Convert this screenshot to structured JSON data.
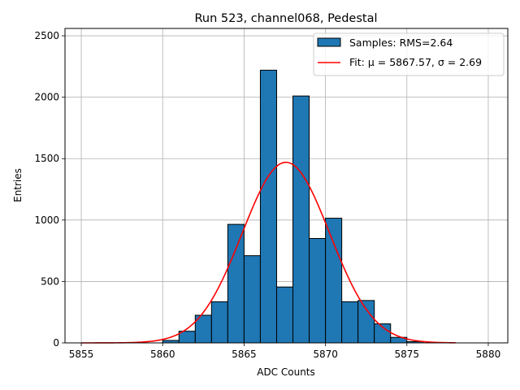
{
  "chart_data": {
    "type": "bar",
    "title": "Run 523, channel068, Pedestal",
    "xlabel": "ADC Counts",
    "ylabel": "Entries",
    "xlim": [
      5854.0,
      5881.2
    ],
    "ylim": [
      0,
      2560
    ],
    "xticks": [
      5855,
      5860,
      5865,
      5870,
      5875,
      5880
    ],
    "yticks": [
      0,
      500,
      1000,
      1500,
      2000,
      2500
    ],
    "grid": true,
    "legend_position": "top-right",
    "bin_width": 1,
    "series": [
      {
        "name": "Samples: RMS=2.64",
        "kind": "histogram",
        "color": "#1f77b4",
        "edgecolor": "#000000",
        "bins": [
          {
            "x0": 5860.0,
            "x1": 5861.0,
            "count": 20
          },
          {
            "x0": 5861.0,
            "x1": 5862.0,
            "count": 95
          },
          {
            "x0": 5862.0,
            "x1": 5863.0,
            "count": 225
          },
          {
            "x0": 5863.0,
            "x1": 5864.0,
            "count": 335
          },
          {
            "x0": 5864.0,
            "x1": 5865.0,
            "count": 965
          },
          {
            "x0": 5865.0,
            "x1": 5866.0,
            "count": 710
          },
          {
            "x0": 5866.0,
            "x1": 5867.0,
            "count": 2220
          },
          {
            "x0": 5867.0,
            "x1": 5868.0,
            "count": 455
          },
          {
            "x0": 5868.0,
            "x1": 5869.0,
            "count": 2010
          },
          {
            "x0": 5869.0,
            "x1": 5870.0,
            "count": 850
          },
          {
            "x0": 5870.0,
            "x1": 5871.0,
            "count": 1015
          },
          {
            "x0": 5871.0,
            "x1": 5872.0,
            "count": 335
          },
          {
            "x0": 5872.0,
            "x1": 5873.0,
            "count": 345
          },
          {
            "x0": 5873.0,
            "x1": 5874.0,
            "count": 155
          },
          {
            "x0": 5874.0,
            "x1": 5875.0,
            "count": 45
          },
          {
            "x0": 5875.0,
            "x1": 5876.0,
            "count": 10
          }
        ]
      },
      {
        "name": "Fit: μ = 5867.57, σ = 2.69",
        "kind": "gaussian",
        "color": "#ff0000",
        "mu": 5867.57,
        "sigma": 2.69,
        "amplitude": 1470,
        "x_range": [
          5855,
          5878
        ]
      }
    ]
  }
}
